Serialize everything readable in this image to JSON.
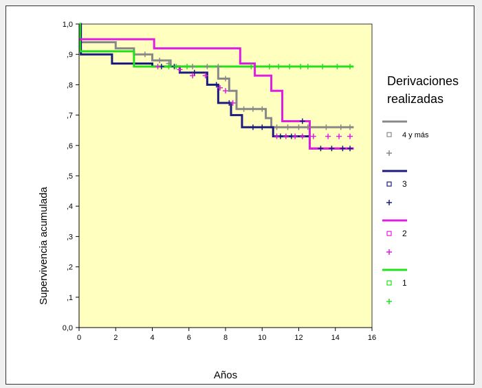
{
  "chart_data": {
    "type": "line",
    "subtype": "kaplan-meier step curves",
    "title": "",
    "xlabel": "Años",
    "ylabel": "Supervivencia acumulada",
    "xlim": [
      0,
      16
    ],
    "ylim": [
      0,
      1
    ],
    "x_ticks": [
      "0",
      "2",
      "4",
      "6",
      "8",
      "10",
      "12",
      "14",
      "16"
    ],
    "y_ticks": [
      "0,0",
      ",1",
      ",2",
      ",3",
      ",4",
      ",5",
      ",6",
      ",7",
      ",8",
      ",9",
      "1,0"
    ],
    "grid": false,
    "plot_background": "#ffffc0",
    "legend": {
      "title_lines": [
        "Derivaciones",
        "realizadas"
      ],
      "placement": "right"
    },
    "series": [
      {
        "name": "4 y más",
        "color": "#888888",
        "steps": [
          [
            0,
            1.0
          ],
          [
            0.05,
            0.94
          ],
          [
            2.0,
            0.92
          ],
          [
            3.0,
            0.9
          ],
          [
            4.0,
            0.88
          ],
          [
            5.0,
            0.86
          ],
          [
            7.6,
            0.82
          ],
          [
            8.2,
            0.78
          ],
          [
            8.6,
            0.72
          ],
          [
            10.2,
            0.69
          ],
          [
            10.5,
            0.66
          ],
          [
            15.0,
            0.66
          ]
        ],
        "censored": [
          [
            3.6,
            0.9
          ],
          [
            4.4,
            0.88
          ],
          [
            4.9,
            0.87
          ],
          [
            6.2,
            0.86
          ],
          [
            7.0,
            0.86
          ],
          [
            7.6,
            0.86
          ],
          [
            8.0,
            0.82
          ],
          [
            9.0,
            0.72
          ],
          [
            9.5,
            0.72
          ],
          [
            10.0,
            0.72
          ],
          [
            10.8,
            0.66
          ],
          [
            11.4,
            0.66
          ],
          [
            12.0,
            0.66
          ],
          [
            12.5,
            0.66
          ],
          [
            13.5,
            0.66
          ],
          [
            14.3,
            0.66
          ],
          [
            14.8,
            0.66
          ]
        ]
      },
      {
        "name": "3",
        "color": "#1a1a80",
        "steps": [
          [
            0,
            1.0
          ],
          [
            0.1,
            0.9
          ],
          [
            1.8,
            0.87
          ],
          [
            4.0,
            0.86
          ],
          [
            5.5,
            0.84
          ],
          [
            7.0,
            0.8
          ],
          [
            7.6,
            0.74
          ],
          [
            8.3,
            0.7
          ],
          [
            8.9,
            0.66
          ],
          [
            10.6,
            0.63
          ],
          [
            12.6,
            0.59
          ],
          [
            15.0,
            0.59
          ]
        ],
        "censored": [
          [
            4.5,
            0.86
          ],
          [
            5.2,
            0.86
          ],
          [
            6.3,
            0.84
          ],
          [
            7.5,
            0.8
          ],
          [
            8.2,
            0.74
          ],
          [
            9.5,
            0.66
          ],
          [
            10.0,
            0.66
          ],
          [
            11.0,
            0.63
          ],
          [
            11.6,
            0.63
          ],
          [
            12.2,
            0.68
          ],
          [
            13.2,
            0.59
          ],
          [
            13.8,
            0.59
          ],
          [
            14.4,
            0.59
          ],
          [
            14.8,
            0.59
          ]
        ]
      },
      {
        "name": "2",
        "color": "#e01ce0",
        "steps": [
          [
            0,
            0.95
          ],
          [
            4.1,
            0.92
          ],
          [
            8.8,
            0.87
          ],
          [
            9.6,
            0.83
          ],
          [
            10.5,
            0.78
          ],
          [
            11.1,
            0.68
          ],
          [
            12.6,
            0.59
          ],
          [
            15.0,
            0.59
          ]
        ],
        "censored": [
          [
            4.3,
            0.86
          ],
          [
            5.5,
            0.85
          ],
          [
            6.2,
            0.83
          ],
          [
            6.9,
            0.83
          ],
          [
            7.7,
            0.79
          ],
          [
            8.0,
            0.78
          ],
          [
            8.4,
            0.74
          ],
          [
            10.8,
            0.63
          ],
          [
            11.3,
            0.63
          ],
          [
            11.8,
            0.63
          ],
          [
            12.2,
            0.63
          ],
          [
            12.8,
            0.63
          ],
          [
            13.6,
            0.63
          ],
          [
            14.2,
            0.63
          ],
          [
            14.8,
            0.63
          ]
        ]
      },
      {
        "name": "1",
        "color": "#22e01c",
        "steps": [
          [
            0,
            1.0
          ],
          [
            0.05,
            0.91
          ],
          [
            3.0,
            0.86
          ],
          [
            15.0,
            0.86
          ]
        ],
        "censored": [
          [
            4.9,
            0.86
          ],
          [
            5.3,
            0.86
          ],
          [
            5.9,
            0.86
          ],
          [
            9.4,
            0.86
          ],
          [
            10.4,
            0.86
          ],
          [
            10.9,
            0.86
          ],
          [
            11.5,
            0.86
          ],
          [
            12.1,
            0.86
          ],
          [
            12.5,
            0.86
          ],
          [
            13.3,
            0.86
          ],
          [
            14.1,
            0.86
          ],
          [
            14.8,
            0.86
          ]
        ]
      }
    ]
  }
}
